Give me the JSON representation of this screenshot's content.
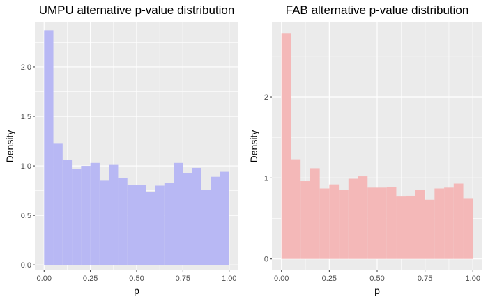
{
  "chart_data": [
    {
      "type": "bar",
      "title": "UMPU alternative p-value distribution",
      "xlabel": "p",
      "ylabel": "Density",
      "xlim": [
        -0.05,
        1.05
      ],
      "ylim": [
        -0.055,
        2.45
      ],
      "bin_width": 0.05,
      "fill": "#b8b8f4",
      "background": "#ebebeb",
      "grid": true,
      "x_ticks": [
        0.0,
        0.25,
        0.5,
        0.75,
        1.0
      ],
      "x_tick_labels": [
        "0.00",
        "0.25",
        "0.50",
        "0.75",
        "1.00"
      ],
      "y_ticks": [
        0.0,
        0.5,
        1.0,
        1.5,
        2.0
      ],
      "y_tick_labels": [
        "0.0",
        "0.5",
        "1.0",
        "1.5",
        "2.0"
      ],
      "bin_centers": [
        0.025,
        0.075,
        0.125,
        0.175,
        0.225,
        0.275,
        0.325,
        0.375,
        0.425,
        0.475,
        0.525,
        0.575,
        0.625,
        0.675,
        0.725,
        0.775,
        0.825,
        0.875,
        0.925,
        0.975
      ],
      "values": [
        2.37,
        1.23,
        1.06,
        0.97,
        1.0,
        1.03,
        0.85,
        1.01,
        0.88,
        0.81,
        0.81,
        0.74,
        0.8,
        0.83,
        1.03,
        0.93,
        0.98,
        0.76,
        0.89,
        0.94
      ]
    },
    {
      "type": "bar",
      "title": "FAB alternative p-value distribution",
      "xlabel": "p",
      "ylabel": "Density",
      "xlim": [
        -0.05,
        1.05
      ],
      "ylim": [
        -0.14,
        2.92
      ],
      "bin_width": 0.05,
      "fill": "#f4b8b8",
      "background": "#ebebeb",
      "grid": true,
      "x_ticks": [
        0.0,
        0.25,
        0.5,
        0.75,
        1.0
      ],
      "x_tick_labels": [
        "0.00",
        "0.25",
        "0.50",
        "0.75",
        "1.00"
      ],
      "y_ticks": [
        0,
        1,
        2
      ],
      "y_tick_labels": [
        "0",
        "1",
        "2"
      ],
      "bin_centers": [
        0.025,
        0.075,
        0.125,
        0.175,
        0.225,
        0.275,
        0.325,
        0.375,
        0.425,
        0.475,
        0.525,
        0.575,
        0.625,
        0.675,
        0.725,
        0.775,
        0.825,
        0.875,
        0.925,
        0.975
      ],
      "values": [
        2.78,
        1.23,
        0.96,
        1.12,
        0.87,
        0.92,
        0.85,
        0.99,
        1.02,
        0.88,
        0.88,
        0.89,
        0.77,
        0.78,
        0.85,
        0.73,
        0.87,
        0.88,
        0.93,
        0.75
      ]
    }
  ]
}
